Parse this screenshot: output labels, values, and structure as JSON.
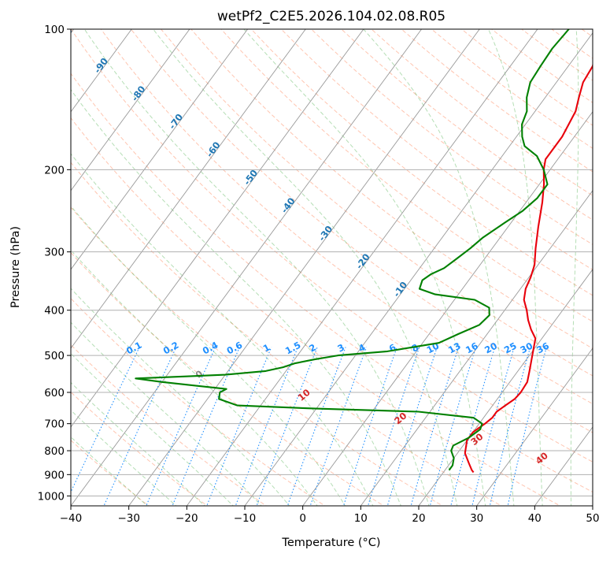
{
  "chart_data": {
    "type": "skew-t",
    "title": "wetPf2_C2E5.2026.104.02.08.R05",
    "xlabel": "Temperature (°C)",
    "ylabel": "Pressure (hPa)",
    "xlim": [
      -40,
      50
    ],
    "ylim": [
      1050,
      100
    ],
    "y_scale": "log",
    "grid": true,
    "x_ticks": [
      -40,
      -30,
      -20,
      -10,
      0,
      10,
      20,
      30,
      40,
      50
    ],
    "y_ticks": [
      100,
      200,
      300,
      400,
      500,
      600,
      700,
      800,
      900,
      1000
    ],
    "isotherms": [
      -100,
      -90,
      -80,
      -70,
      -60,
      -50,
      -40,
      -30,
      -20,
      -10,
      0,
      10,
      20,
      30,
      40
    ],
    "mixing_ratio_labels": [
      "0.1",
      "0.2",
      "0.4",
      "0.6",
      "1",
      "1.5",
      "2",
      "3",
      "4",
      "6",
      "8",
      "10",
      "13",
      "16",
      "20",
      "25",
      "30",
      "36"
    ],
    "moist_adiabat_labels": [
      "0",
      "10",
      "20",
      "30",
      "40"
    ],
    "colors": {
      "temperature": "#e8000b",
      "dewpoint": "#008000",
      "isotherm_label": "#1f77b4",
      "mixing_ratio": "#1f8fff",
      "moist_adiabat_label": "#d62728",
      "moist_adiabat_zero": "#888888",
      "dry_adiabat": "#ff7f50",
      "moist_adiabat": "#2ca02c",
      "grid": "#b0b0b0"
    },
    "series": [
      {
        "key": "temperature",
        "points": [
          [
            25.2,
            890
          ],
          [
            24.6,
            880
          ],
          [
            23.2,
            850
          ],
          [
            21.3,
            810
          ],
          [
            20.0,
            760
          ],
          [
            20.0,
            730
          ],
          [
            21.0,
            700
          ],
          [
            21.5,
            680
          ],
          [
            21.5,
            660
          ],
          [
            22.2,
            640
          ],
          [
            23.0,
            620
          ],
          [
            23.2,
            600
          ],
          [
            23.0,
            570
          ],
          [
            22.0,
            540
          ],
          [
            20.5,
            500
          ],
          [
            18.9,
            460
          ],
          [
            17.0,
            440
          ],
          [
            15.3,
            420
          ],
          [
            13.8,
            400
          ],
          [
            12.0,
            380
          ],
          [
            10.9,
            360
          ],
          [
            10.3,
            340
          ],
          [
            9.4,
            320
          ],
          [
            7.5,
            295
          ],
          [
            5.2,
            265
          ],
          [
            2.8,
            235
          ],
          [
            0.8,
            215
          ],
          [
            -1.1,
            200
          ],
          [
            -2.1,
            190
          ],
          [
            -2.1,
            185
          ],
          [
            -2.1,
            170
          ],
          [
            -3.0,
            150
          ],
          [
            -4.2,
            140
          ],
          [
            -5.4,
            130
          ],
          [
            -5.8,
            120
          ],
          [
            -7.3,
            110
          ],
          [
            -9.0,
            100
          ]
        ]
      },
      {
        "key": "dewpoint",
        "points": [
          [
            20.7,
            880
          ],
          [
            20.7,
            860
          ],
          [
            20.0,
            830
          ],
          [
            18.6,
            800
          ],
          [
            18.3,
            780
          ],
          [
            20.0,
            750
          ],
          [
            20.9,
            720
          ],
          [
            20.5,
            700
          ],
          [
            18.3,
            680
          ],
          [
            8.0,
            660
          ],
          [
            -10.0,
            650
          ],
          [
            -24.0,
            640
          ],
          [
            -28.0,
            620
          ],
          [
            -28.7,
            600
          ],
          [
            -28.0,
            590
          ],
          [
            -40.0,
            570
          ],
          [
            -45.0,
            560
          ],
          [
            -30.0,
            550
          ],
          [
            -23.5,
            540
          ],
          [
            -21.0,
            530
          ],
          [
            -19.5,
            520
          ],
          [
            -16.6,
            510
          ],
          [
            -13.0,
            500
          ],
          [
            -5.0,
            490
          ],
          [
            2.8,
            470
          ],
          [
            5.0,
            450
          ],
          [
            7.5,
            430
          ],
          [
            8.0,
            410
          ],
          [
            7.0,
            395
          ],
          [
            3.5,
            380
          ],
          [
            -4.0,
            370
          ],
          [
            -7.4,
            360
          ],
          [
            -8.0,
            345
          ],
          [
            -7.3,
            335
          ],
          [
            -5.8,
            325
          ],
          [
            -4.8,
            310
          ],
          [
            -3.8,
            295
          ],
          [
            -3.0,
            280
          ],
          [
            -2.1,
            270
          ],
          [
            -1.1,
            260
          ],
          [
            0.5,
            245
          ],
          [
            1.4,
            230
          ],
          [
            1.4,
            215
          ],
          [
            -1.1,
            200
          ],
          [
            -4.0,
            187
          ],
          [
            -7.4,
            178
          ],
          [
            -9.0,
            170
          ],
          [
            -10.6,
            160
          ],
          [
            -11.4,
            150
          ],
          [
            -13.2,
            140
          ],
          [
            -14.5,
            130
          ],
          [
            -14.8,
            120
          ],
          [
            -15.0,
            110
          ],
          [
            -14.6,
            100
          ]
        ]
      }
    ]
  }
}
